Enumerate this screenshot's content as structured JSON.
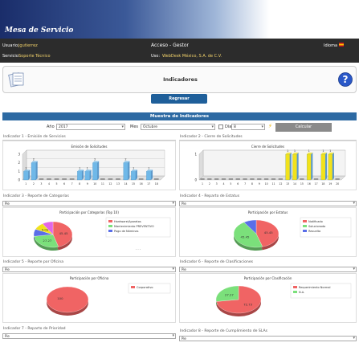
{
  "app": {
    "title": "Mesa de Servicio"
  },
  "topbar": {
    "usuario_label": "Usuario:",
    "usuario": "jgutierrez",
    "acceso": "Acceso - Gestor",
    "idioma_label": "Idioma",
    "servicio_label": "Servicio:",
    "servicio": "Soporte Técnico",
    "uso_label": "Uso:",
    "uso": "WebDesk México, S.A. de C.V."
  },
  "page": {
    "title": "Indicadores",
    "regresar": "Regresar",
    "section": "Muestra de Indicadores"
  },
  "filters": {
    "anio_label": "Año",
    "anio": "2017",
    "mes_label": "Mes",
    "mes": "Octubre",
    "dia_label": "Día",
    "dia": "8",
    "calcular": "Calcular"
  },
  "colors": {
    "accent": "#2d6aa3",
    "bar3d": "#6fb8e8",
    "bar3d_yellow": "#f2e21b"
  },
  "panels": [
    {
      "title": "Indicador 1 - Emisión de Servicios",
      "type": "",
      "chart_title": "Emisión de Solicitudes"
    },
    {
      "title": "Indicador 2 - Cierre de Solicitudes",
      "type": "",
      "chart_title": "Cierre de Solicitudes"
    },
    {
      "title": "Indicador 3 - Reporte de Categorías",
      "type": "Pie",
      "chart_title": "Participación por Categorías (Top 10)"
    },
    {
      "title": "Indicador 4 - Reparto de Estatus",
      "type": "Pie",
      "chart_title": "Participación por Estatus"
    },
    {
      "title": "Indicador 5 - Reporte por Oficina",
      "type": "Pie",
      "chart_title": "Participación por Oficina"
    },
    {
      "title": "Indicador 6 - Reporte de Clasificaciones",
      "type": "Pie",
      "chart_title": "Participación por Clasificación"
    },
    {
      "title": "Indicador 7 - Reparto de Prioridad",
      "type": "Pie",
      "chart_title": ""
    },
    {
      "title": "Indicador 8 - Reporte de Cumplimiento de SLAs",
      "type": "Pie",
      "chart_title": ""
    }
  ],
  "chart_data": [
    {
      "type": "bar",
      "title": "Emisión de Solicitudes",
      "ylim": [
        0,
        3
      ],
      "yticks": [
        "0",
        "1",
        "2",
        "3"
      ],
      "values": [
        1,
        2,
        0,
        0,
        0,
        0,
        0,
        1,
        1,
        2,
        0,
        0,
        0,
        2,
        1,
        0,
        1,
        0
      ],
      "labels": [
        "1",
        "2",
        "",
        "",
        "",
        "",
        "",
        "1",
        "1",
        "2",
        "",
        "",
        "",
        "2",
        "1",
        "",
        "1",
        ""
      ],
      "categories": [
        "1",
        "2",
        "3",
        "4",
        "5",
        "6",
        "7",
        "8",
        "9",
        "10",
        "11",
        "12",
        "13",
        "14",
        "15",
        "16",
        "17",
        "18"
      ]
    },
    {
      "type": "bar",
      "title": "Cierre de Solicitudes",
      "ylim": [
        0,
        1
      ],
      "yticks": [
        "0",
        "1"
      ],
      "values": [
        0,
        0,
        0,
        0,
        0,
        0,
        0,
        0,
        0,
        0,
        0,
        0,
        1,
        1,
        0,
        1,
        0,
        1,
        1,
        0
      ],
      "labels": [
        "",
        "",
        "",
        "",
        "",
        "",
        "",
        "",
        "",
        "",
        "",
        "",
        "1",
        "1",
        "",
        "1",
        "",
        "1",
        "1",
        ""
      ],
      "categories": [
        "1",
        "2",
        "3",
        "4",
        "5",
        "6",
        "7",
        "8",
        "9",
        "10",
        "11",
        "12",
        "13",
        "14",
        "15",
        "16",
        "17",
        "18",
        "19",
        "20"
      ]
    },
    {
      "type": "pie",
      "title": "Participación por Categorías (Top 10)",
      "series": [
        {
          "name": "Hardware\\Aparatos",
          "value": 45.45,
          "color": "#f06464"
        },
        {
          "name": "Mantenimiento PREVENTIVO",
          "value": 27.27,
          "color": "#7be07b"
        },
        {
          "name": "Pago de Nóminas",
          "value": 9.09,
          "color": "#5a6ee8"
        },
        {
          "name": "",
          "value": 9.09,
          "color": "#f2e21b"
        },
        {
          "name": "",
          "value": 9.1,
          "color": "#e266e6"
        }
      ],
      "labels": [
        "45.45",
        "27.27",
        "",
        "9.09",
        ""
      ]
    },
    {
      "type": "pie",
      "title": "Participación por Estatus",
      "series": [
        {
          "name": "Notificado",
          "value": 45.45,
          "color": "#f06464"
        },
        {
          "name": "Solucionado",
          "value": 45.45,
          "color": "#7be07b"
        },
        {
          "name": "Resuelta",
          "value": 9.1,
          "color": "#5a6ee8"
        }
      ],
      "labels": [
        "45.45",
        "45.45",
        ""
      ]
    },
    {
      "type": "pie",
      "title": "Participación por Oficina",
      "series": [
        {
          "name": "Corporativo",
          "value": 100,
          "color": "#f06464"
        }
      ],
      "labels": [
        "100"
      ]
    },
    {
      "type": "pie",
      "title": "Participación por Clasificación",
      "series": [
        {
          "name": "Requerimiento Normal",
          "value": 72.73,
          "color": "#f06464"
        },
        {
          "name": "N.A.",
          "value": 27.27,
          "color": "#7be07b"
        }
      ],
      "labels": [
        "72.73",
        "27.27"
      ]
    }
  ]
}
